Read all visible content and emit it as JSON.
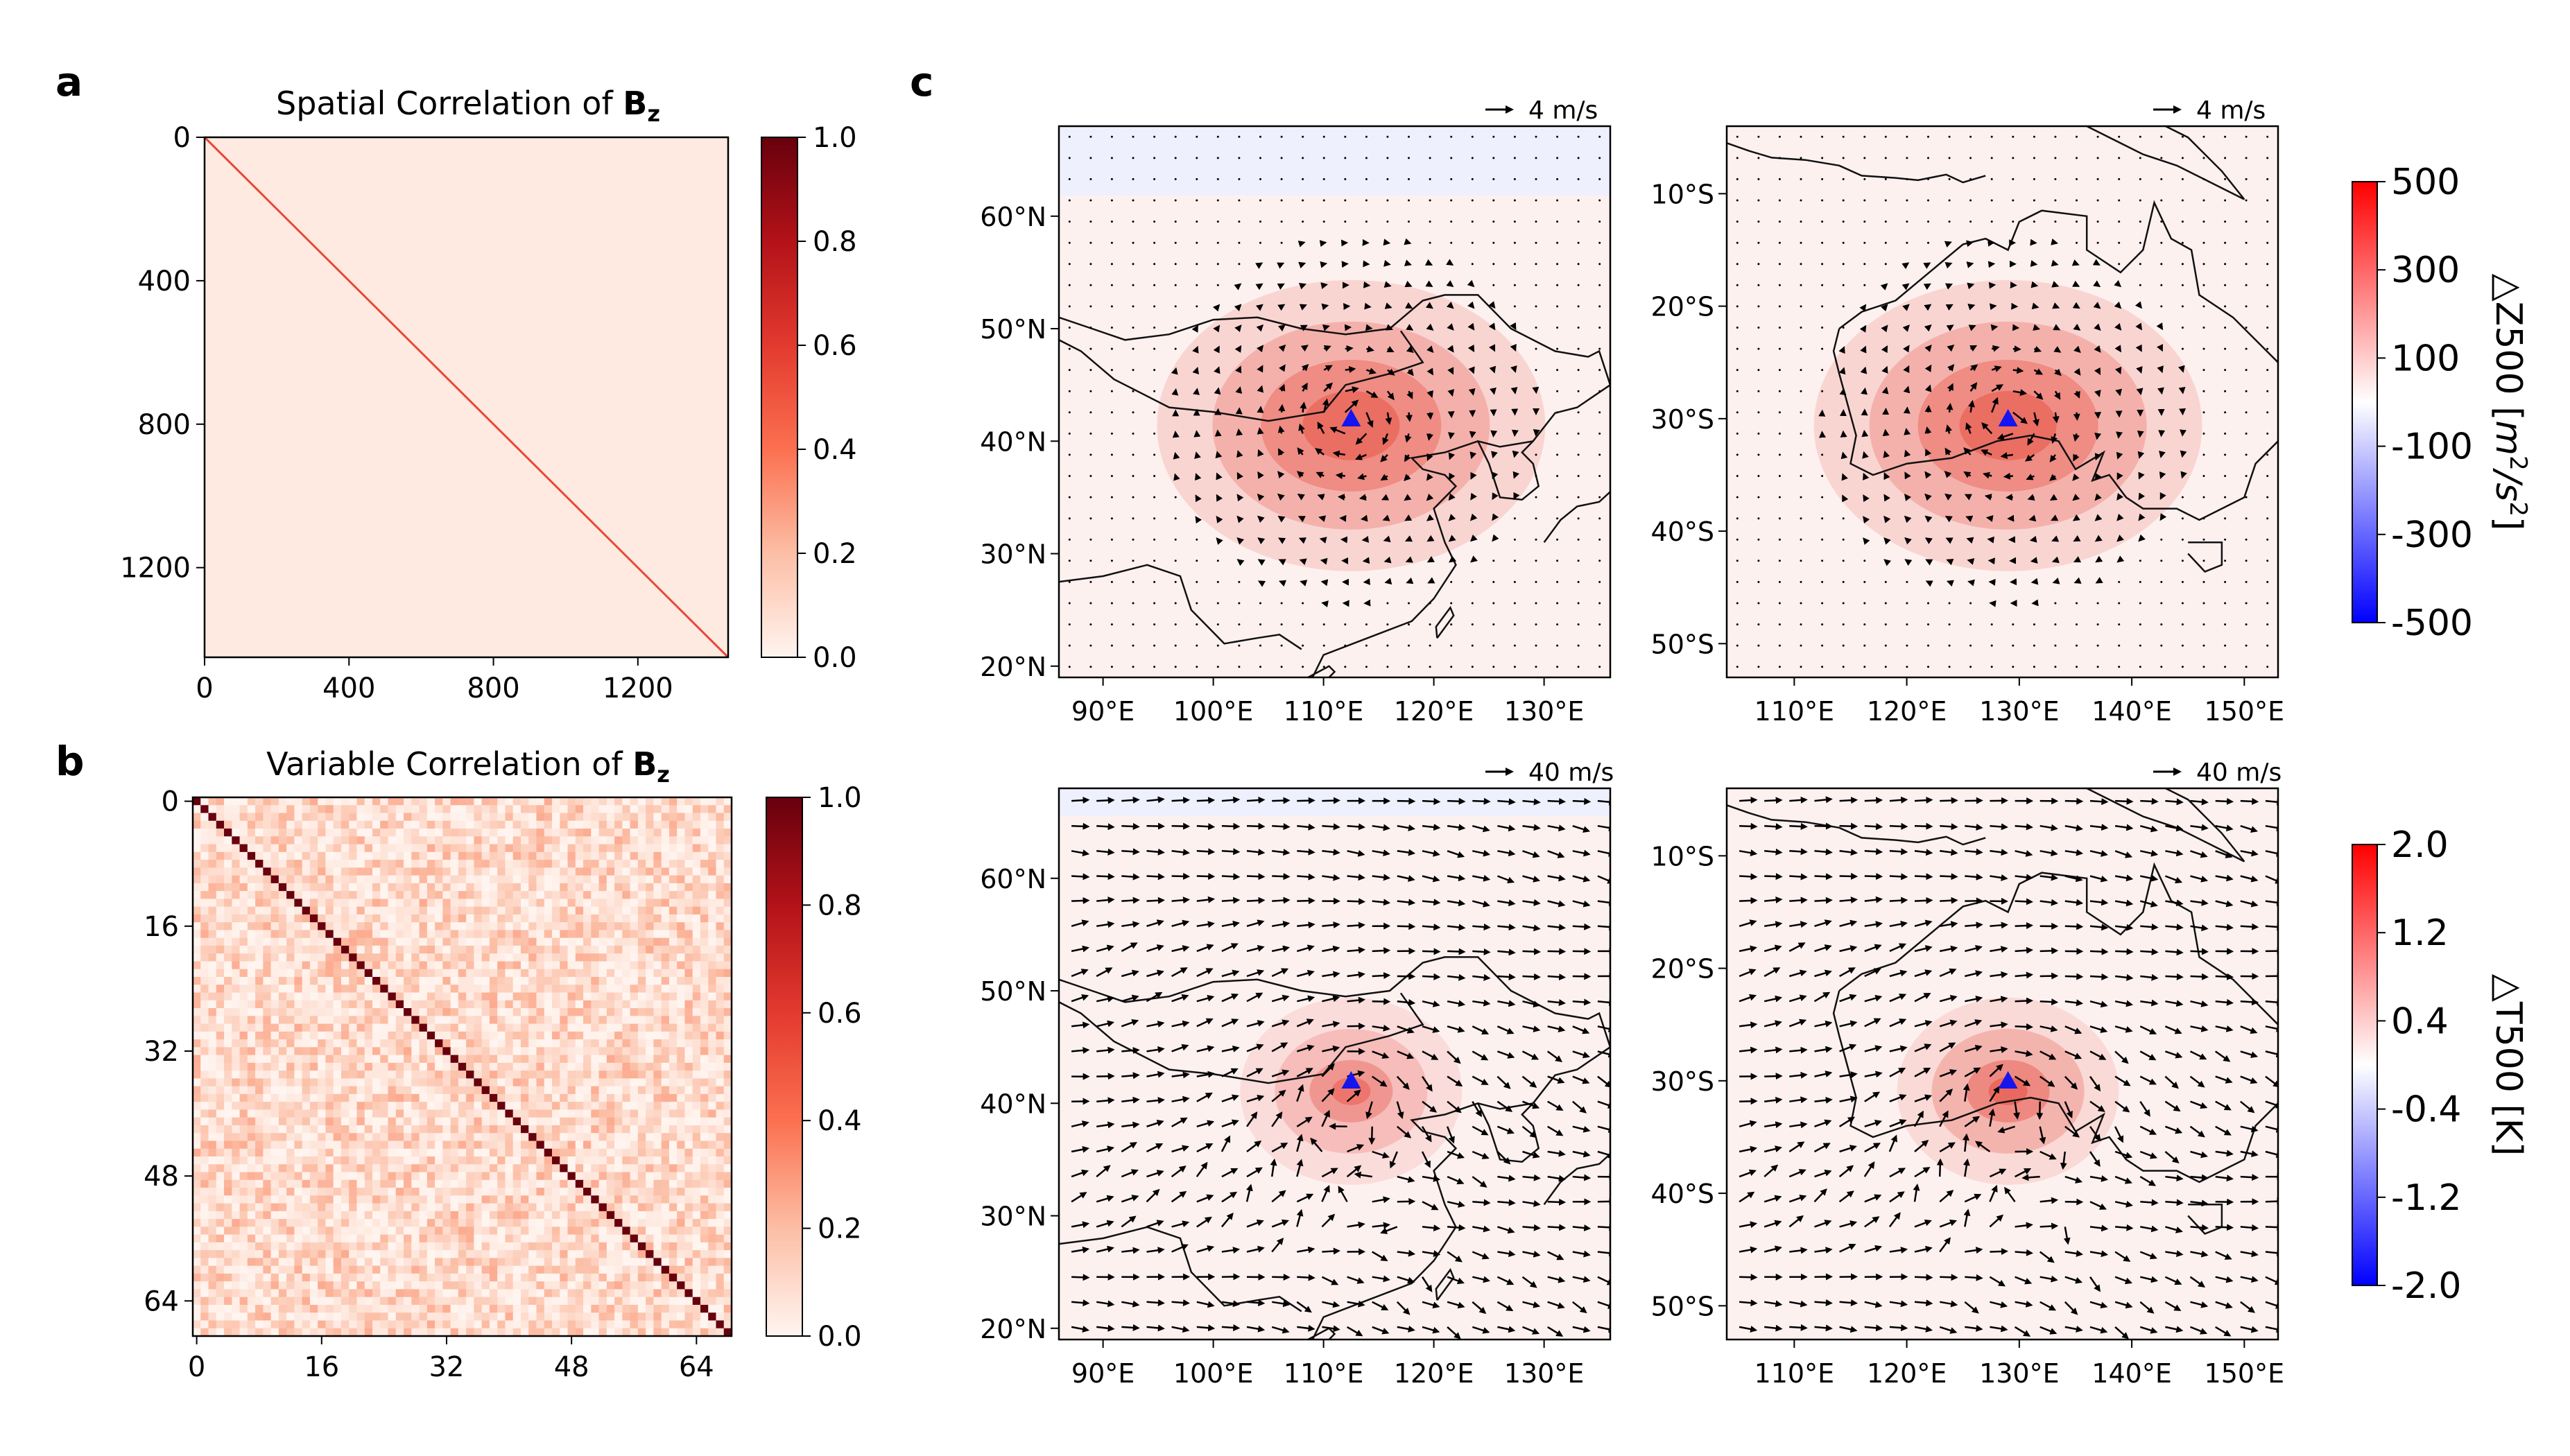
{
  "panel_labels": {
    "a": "a",
    "b": "b",
    "c": "c"
  },
  "chart_data": [
    {
      "id": "a",
      "type": "heatmap",
      "title_prefix": "Spatial Correlation of ",
      "title_bold": "B",
      "title_sub": "z",
      "size": 1450,
      "diagonal_value": 0.55,
      "off_diagonal_value": 0.04,
      "xticks": [
        0,
        400,
        800,
        1200
      ],
      "yticks": [
        0,
        400,
        800,
        1200
      ],
      "colorbar": {
        "min": 0.0,
        "max": 1.0,
        "ticks": [
          "0.0",
          "0.2",
          "0.4",
          "0.6",
          "0.8",
          "1.0"
        ]
      },
      "colormap": "Reds"
    },
    {
      "id": "b",
      "type": "heatmap",
      "title_prefix": "Variable Correlation of ",
      "title_bold": "B",
      "title_sub": "z",
      "size": 69,
      "diagonal_value": 1.0,
      "off_diagonal_range": [
        0.0,
        0.25
      ],
      "xticks": [
        0,
        16,
        32,
        48,
        64
      ],
      "yticks": [
        0,
        16,
        32,
        48,
        64
      ],
      "colorbar": {
        "min": 0.0,
        "max": 1.0,
        "ticks": [
          "0.0",
          "0.2",
          "0.4",
          "0.6",
          "0.8",
          "1.0"
        ]
      },
      "colormap": "Reds"
    },
    {
      "id": "c-z500-asia",
      "type": "map",
      "field": "ΔZ500",
      "region": "East Asia",
      "lon_range": [
        86,
        136
      ],
      "lat_range": [
        19,
        68
      ],
      "xticks": [
        "90°E",
        "100°E",
        "110°E",
        "120°E",
        "130°E"
      ],
      "yticks": [
        "20°N",
        "30°N",
        "40°N",
        "50°N",
        "60°N"
      ],
      "xtick_values": [
        90,
        100,
        110,
        120,
        130
      ],
      "ytick_values": [
        20,
        30,
        40,
        50,
        60
      ],
      "center": {
        "lon": 112.5,
        "lat": 42
      },
      "peak_value": 300,
      "vector_reference": "4 m/s",
      "wind_scale": "small"
    },
    {
      "id": "c-z500-australia",
      "type": "map",
      "field": "ΔZ500",
      "region": "Australia",
      "lon_range": [
        104,
        153
      ],
      "lat_range": [
        -53,
        -4
      ],
      "xticks": [
        "110°E",
        "120°E",
        "130°E",
        "140°E",
        "150°E"
      ],
      "yticks": [
        "10°S",
        "20°S",
        "30°S",
        "40°S",
        "50°S"
      ],
      "xtick_values": [
        110,
        120,
        130,
        140,
        150
      ],
      "ytick_values": [
        -10,
        -20,
        -30,
        -40,
        -50
      ],
      "center": {
        "lon": 129,
        "lat": -30
      },
      "peak_value": 300,
      "vector_reference": "4 m/s",
      "wind_scale": "small"
    },
    {
      "id": "c-t500-asia",
      "type": "map",
      "field": "ΔT500",
      "region": "East Asia",
      "lon_range": [
        86,
        136
      ],
      "lat_range": [
        19,
        68
      ],
      "xticks": [
        "90°E",
        "100°E",
        "110°E",
        "120°E",
        "130°E"
      ],
      "yticks": [
        "20°N",
        "30°N",
        "40°N",
        "50°N",
        "60°N"
      ],
      "xtick_values": [
        90,
        100,
        110,
        120,
        130
      ],
      "ytick_values": [
        20,
        30,
        40,
        50,
        60
      ],
      "center": {
        "lon": 112.5,
        "lat": 42
      },
      "peak_value": 0.8,
      "vector_reference": "40 m/s",
      "wind_scale": "large"
    },
    {
      "id": "c-t500-australia",
      "type": "map",
      "field": "ΔT500",
      "region": "Australia",
      "lon_range": [
        104,
        153
      ],
      "lat_range": [
        -53,
        -4
      ],
      "xticks": [
        "110°E",
        "120°E",
        "130°E",
        "140°E",
        "150°E"
      ],
      "yticks": [
        "10°S",
        "20°S",
        "30°S",
        "40°S",
        "50°S"
      ],
      "xtick_values": [
        110,
        120,
        130,
        140,
        150
      ],
      "ytick_values": [
        -10,
        -20,
        -30,
        -40,
        -50
      ],
      "center": {
        "lon": 129,
        "lat": -30
      },
      "peak_value": 1.2,
      "vector_reference": "40 m/s",
      "wind_scale": "large"
    }
  ],
  "colorbar_z500": {
    "label_prefix": "△Z500 [",
    "label_unit": "m",
    "label_unit_exp": "2",
    "label_unit2": "/s",
    "label_unit2_exp": "2",
    "label_suffix": "]",
    "min": -500,
    "max": 500,
    "ticks": [
      "500",
      "300",
      "100",
      "-100",
      "-300",
      "-500"
    ]
  },
  "colorbar_t500": {
    "label": "△T500 [K]",
    "min": -2.0,
    "max": 2.0,
    "ticks": [
      "2.0",
      "1.2",
      "0.4",
      "-0.4",
      "-1.2",
      "-2.0"
    ]
  },
  "colors": {
    "marker": "#1515ee",
    "coast": "#111111",
    "arrow": "#000000"
  }
}
